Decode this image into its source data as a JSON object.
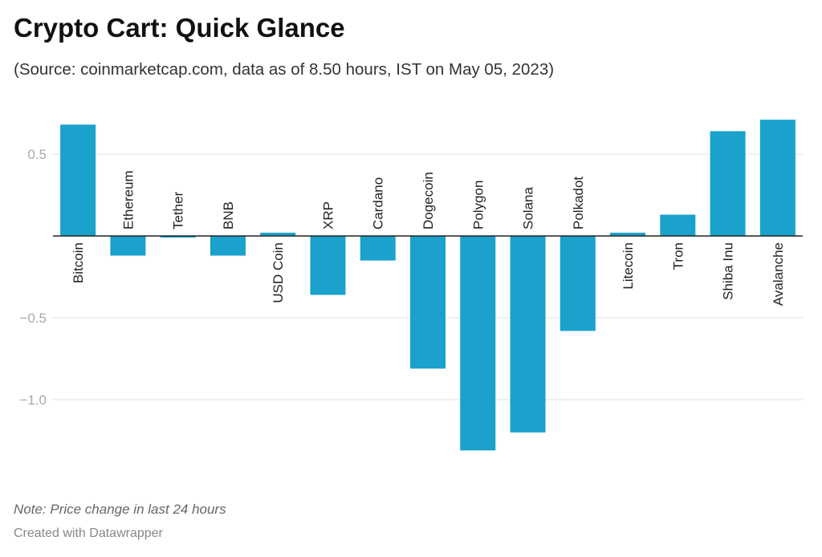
{
  "header": {
    "title": "Crypto Cart: Quick Glance",
    "subtitle": "(Source: coinmarketcap.com, data as of 8.50 hours, IST on May 05, 2023)"
  },
  "footer": {
    "note": "Note: Price change in last 24 hours",
    "credit": "Created with Datawrapper"
  },
  "colors": {
    "bar": "#1aa1cc",
    "grid": "#e2e2e2",
    "zero_line": "#222222"
  },
  "chart_data": {
    "type": "bar",
    "title": "Crypto Cart: Quick Glance",
    "xlabel": "",
    "ylabel": "",
    "categories": [
      "Bitcoin",
      "Ethereum",
      "Tether",
      "BNB",
      "USD Coin",
      "XRP",
      "Cardano",
      "Dogecoin",
      "Polygon",
      "Solana",
      "Polkadot",
      "Litecoin",
      "Tron",
      "Shiba Inu",
      "Avalanche"
    ],
    "values": [
      0.68,
      -0.12,
      -0.01,
      -0.12,
      0.02,
      -0.36,
      -0.15,
      -0.81,
      -1.31,
      -1.2,
      -0.58,
      0.02,
      0.13,
      0.64,
      0.71
    ],
    "yticks": [
      0.5,
      -0.5,
      -1.0
    ],
    "ytick_labels": [
      "0.5",
      "−0.5",
      "−1.0"
    ],
    "ylim": [
      -1.5,
      0.75
    ],
    "grid": true,
    "legend": "none"
  }
}
